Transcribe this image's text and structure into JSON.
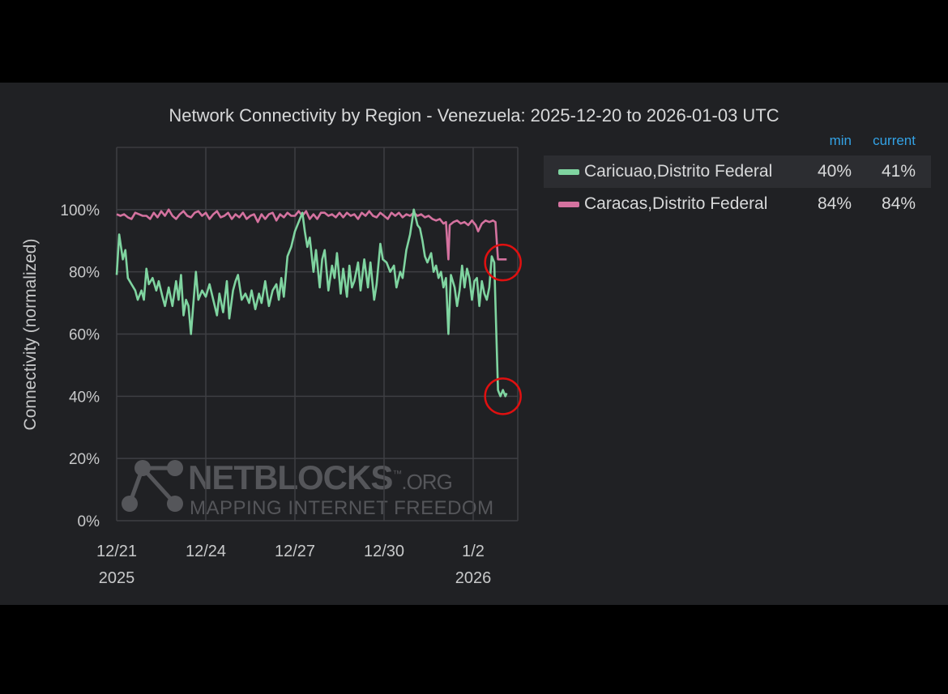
{
  "chart_data": {
    "type": "line",
    "title": "Network Connectivity by Region - Venezuela: 2025-12-20 to 2026-01-03 UTC",
    "ylabel": "Connectivity (normalized)",
    "xlabel": "",
    "ylim": [
      0,
      120
    ],
    "y_ticks": [
      "0%",
      "20%",
      "40%",
      "60%",
      "80%",
      "100%"
    ],
    "x_ticks": [
      {
        "x": "2025-12-21",
        "label": "12/21",
        "sublabel": "2025"
      },
      {
        "x": "2025-12-24",
        "label": "12/24",
        "sublabel": ""
      },
      {
        "x": "2025-12-27",
        "label": "12/27",
        "sublabel": ""
      },
      {
        "x": "2025-12-30",
        "label": "12/30",
        "sublabel": ""
      },
      {
        "x": "2026-01-02",
        "label": "1/2",
        "sublabel": "2026"
      }
    ],
    "xlim": [
      "2025-12-21T00:00",
      "2026-01-03T12:00"
    ],
    "grid": true,
    "legend_placement": "right",
    "legend_columns": [
      "min",
      "current"
    ],
    "series": [
      {
        "name": "Caricuao,Distrito Federal",
        "color": "#7fd4a0",
        "min": "40%",
        "current": "41%",
        "points": [
          [
            "2025-12-21T00:00",
            79
          ],
          [
            "2025-12-21T02:00",
            92
          ],
          [
            "2025-12-21T05:00",
            84
          ],
          [
            "2025-12-21T07:00",
            87
          ],
          [
            "2025-12-21T09:00",
            78
          ],
          [
            "2025-12-21T12:00",
            76
          ],
          [
            "2025-12-21T15:00",
            74
          ],
          [
            "2025-12-21T17:00",
            71
          ],
          [
            "2025-12-21T20:00",
            74
          ],
          [
            "2025-12-21T22:00",
            71
          ],
          [
            "2025-12-22T00:00",
            81
          ],
          [
            "2025-12-22T02:00",
            76
          ],
          [
            "2025-12-22T05:00",
            78
          ],
          [
            "2025-12-22T08:00",
            74
          ],
          [
            "2025-12-22T10:00",
            77
          ],
          [
            "2025-12-22T13:00",
            72
          ],
          [
            "2025-12-22T15:00",
            69
          ],
          [
            "2025-12-22T18:00",
            75
          ],
          [
            "2025-12-22T21:00",
            69
          ],
          [
            "2025-12-23T00:00",
            77
          ],
          [
            "2025-12-23T02:00",
            71
          ],
          [
            "2025-12-23T04:00",
            79
          ],
          [
            "2025-12-23T06:00",
            66
          ],
          [
            "2025-12-23T08:00",
            71
          ],
          [
            "2025-12-23T10:00",
            69
          ],
          [
            "2025-12-23T12:00",
            60
          ],
          [
            "2025-12-23T14:00",
            70
          ],
          [
            "2025-12-23T16:00",
            80
          ],
          [
            "2025-12-23T18:00",
            71
          ],
          [
            "2025-12-23T21:00",
            74
          ],
          [
            "2025-12-24T00:00",
            72
          ],
          [
            "2025-12-24T03:00",
            76
          ],
          [
            "2025-12-24T06:00",
            71
          ],
          [
            "2025-12-24T09:00",
            66
          ],
          [
            "2025-12-24T11:00",
            73
          ],
          [
            "2025-12-24T14:00",
            67
          ],
          [
            "2025-12-24T17:00",
            77
          ],
          [
            "2025-12-24T19:00",
            65
          ],
          [
            "2025-12-24T22:00",
            74
          ],
          [
            "2025-12-25T00:00",
            77
          ],
          [
            "2025-12-25T02:00",
            79
          ],
          [
            "2025-12-25T05:00",
            71
          ],
          [
            "2025-12-25T08:00",
            73
          ],
          [
            "2025-12-25T11:00",
            70
          ],
          [
            "2025-12-25T13:00",
            74
          ],
          [
            "2025-12-25T16:00",
            68
          ],
          [
            "2025-12-25T19:00",
            73
          ],
          [
            "2025-12-25T21:00",
            70
          ],
          [
            "2025-12-26T00:00",
            77
          ],
          [
            "2025-12-26T03:00",
            69
          ],
          [
            "2025-12-26T06:00",
            74
          ],
          [
            "2025-12-26T09:00",
            76
          ],
          [
            "2025-12-26T11:00",
            71
          ],
          [
            "2025-12-26T13:00",
            78
          ],
          [
            "2025-12-26T15:00",
            72
          ],
          [
            "2025-12-26T18:00",
            85
          ],
          [
            "2025-12-26T21:00",
            88
          ],
          [
            "2025-12-27T00:00",
            93
          ],
          [
            "2025-12-27T03:00",
            96
          ],
          [
            "2025-12-27T06:00",
            99
          ],
          [
            "2025-12-27T08:00",
            93
          ],
          [
            "2025-12-27T10:00",
            88
          ],
          [
            "2025-12-27T12:00",
            91
          ],
          [
            "2025-12-27T15:00",
            80
          ],
          [
            "2025-12-27T17:00",
            87
          ],
          [
            "2025-12-27T20:00",
            75
          ],
          [
            "2025-12-27T22:00",
            84
          ],
          [
            "2025-12-28T00:00",
            87
          ],
          [
            "2025-12-28T03:00",
            74
          ],
          [
            "2025-12-28T06:00",
            82
          ],
          [
            "2025-12-28T08:00",
            78
          ],
          [
            "2025-12-28T10:00",
            86
          ],
          [
            "2025-12-28T13:00",
            73
          ],
          [
            "2025-12-28T15:00",
            81
          ],
          [
            "2025-12-28T18:00",
            72
          ],
          [
            "2025-12-28T20:00",
            82
          ],
          [
            "2025-12-28T22:00",
            75
          ],
          [
            "2025-12-29T00:00",
            77
          ],
          [
            "2025-12-29T03:00",
            83
          ],
          [
            "2025-12-29T05:00",
            74
          ],
          [
            "2025-12-29T08:00",
            84
          ],
          [
            "2025-12-29T11:00",
            75
          ],
          [
            "2025-12-29T13:00",
            83
          ],
          [
            "2025-12-29T16:00",
            71
          ],
          [
            "2025-12-29T18:00",
            76
          ],
          [
            "2025-12-29T21:00",
            89
          ],
          [
            "2025-12-29T23:00",
            84
          ],
          [
            "2025-12-30T02:00",
            83
          ],
          [
            "2025-12-30T05:00",
            80
          ],
          [
            "2025-12-30T08:00",
            82
          ],
          [
            "2025-12-30T10:00",
            75
          ],
          [
            "2025-12-30T13:00",
            80
          ],
          [
            "2025-12-30T15:00",
            78
          ],
          [
            "2025-12-30T18:00",
            87
          ],
          [
            "2025-12-30T21:00",
            92
          ],
          [
            "2025-12-31T00:00",
            100
          ],
          [
            "2025-12-31T03:00",
            95
          ],
          [
            "2025-12-31T05:00",
            94
          ],
          [
            "2025-12-31T07:00",
            90
          ],
          [
            "2025-12-31T09:00",
            85
          ],
          [
            "2025-12-31T11:00",
            83
          ],
          [
            "2025-12-31T14:00",
            86
          ],
          [
            "2025-12-31T16:00",
            80
          ],
          [
            "2025-12-31T18:00",
            82
          ],
          [
            "2025-12-31T20:00",
            78
          ],
          [
            "2025-12-31T22:00",
            80
          ],
          [
            "2026-01-01T00:00",
            75
          ],
          [
            "2026-01-01T02:00",
            78
          ],
          [
            "2026-01-01T04:00",
            60
          ],
          [
            "2026-01-01T06:00",
            79
          ],
          [
            "2026-01-01T09:00",
            75
          ],
          [
            "2026-01-01T11:00",
            69
          ],
          [
            "2026-01-01T13:00",
            74
          ],
          [
            "2026-01-01T15:00",
            82
          ],
          [
            "2026-01-01T17:00",
            75
          ],
          [
            "2026-01-01T19:00",
            81
          ],
          [
            "2026-01-01T21:00",
            78
          ],
          [
            "2026-01-01T23:00",
            71
          ],
          [
            "2026-01-02T01:00",
            77
          ],
          [
            "2026-01-02T03:00",
            78
          ],
          [
            "2026-01-02T05:00",
            69
          ],
          [
            "2026-01-02T07:00",
            77
          ],
          [
            "2026-01-02T09:00",
            73
          ],
          [
            "2026-01-02T11:00",
            71
          ],
          [
            "2026-01-02T13:00",
            75
          ],
          [
            "2026-01-02T15:00",
            85
          ],
          [
            "2026-01-02T17:00",
            83
          ],
          [
            "2026-01-02T20:00",
            42
          ],
          [
            "2026-01-02T22:00",
            40
          ],
          [
            "2026-01-03T00:00",
            42
          ],
          [
            "2026-01-03T02:00",
            40
          ],
          [
            "2026-01-03T03:00",
            41
          ]
        ]
      },
      {
        "name": "Caracas,Distrito Federal",
        "color": "#d4729f",
        "min": "84%",
        "current": "84%",
        "points": [
          [
            "2025-12-21T00:00",
            98.5
          ],
          [
            "2025-12-21T03:00",
            98
          ],
          [
            "2025-12-21T06:00",
            98.5
          ],
          [
            "2025-12-21T09:00",
            97.5
          ],
          [
            "2025-12-21T12:00",
            97
          ],
          [
            "2025-12-21T15:00",
            99
          ],
          [
            "2025-12-21T18:00",
            98.5
          ],
          [
            "2025-12-21T21:00",
            98
          ],
          [
            "2025-12-22T00:00",
            98
          ],
          [
            "2025-12-22T03:00",
            97
          ],
          [
            "2025-12-22T06:00",
            99
          ],
          [
            "2025-12-22T09:00",
            97.5
          ],
          [
            "2025-12-22T12:00",
            99.5
          ],
          [
            "2025-12-22T15:00",
            98
          ],
          [
            "2025-12-22T18:00",
            100
          ],
          [
            "2025-12-22T21:00",
            98
          ],
          [
            "2025-12-23T00:00",
            97
          ],
          [
            "2025-12-23T03:00",
            98.5
          ],
          [
            "2025-12-23T06:00",
            99.5
          ],
          [
            "2025-12-23T09:00",
            98
          ],
          [
            "2025-12-23T12:00",
            97.5
          ],
          [
            "2025-12-23T15:00",
            99
          ],
          [
            "2025-12-23T18:00",
            99.5
          ],
          [
            "2025-12-23T21:00",
            98
          ],
          [
            "2025-12-24T00:00",
            99
          ],
          [
            "2025-12-24T03:00",
            97
          ],
          [
            "2025-12-24T06:00",
            98.5
          ],
          [
            "2025-12-24T09:00",
            99.5
          ],
          [
            "2025-12-24T12:00",
            97.5
          ],
          [
            "2025-12-24T15:00",
            98
          ],
          [
            "2025-12-24T18:00",
            99
          ],
          [
            "2025-12-24T21:00",
            97
          ],
          [
            "2025-12-25T00:00",
            98.5
          ],
          [
            "2025-12-25T03:00",
            97.5
          ],
          [
            "2025-12-25T06:00",
            99
          ],
          [
            "2025-12-25T09:00",
            97
          ],
          [
            "2025-12-25T12:00",
            98
          ],
          [
            "2025-12-25T15:00",
            98.5
          ],
          [
            "2025-12-25T18:00",
            96
          ],
          [
            "2025-12-25T21:00",
            98.5
          ],
          [
            "2025-12-26T00:00",
            97
          ],
          [
            "2025-12-26T03:00",
            98.5
          ],
          [
            "2025-12-26T06:00",
            99
          ],
          [
            "2025-12-26T09:00",
            96.5
          ],
          [
            "2025-12-26T12:00",
            98.5
          ],
          [
            "2025-12-26T15:00",
            97.5
          ],
          [
            "2025-12-26T18:00",
            99
          ],
          [
            "2025-12-26T21:00",
            98
          ],
          [
            "2025-12-27T00:00",
            98
          ],
          [
            "2025-12-27T03:00",
            99.5
          ],
          [
            "2025-12-27T06:00",
            98
          ],
          [
            "2025-12-27T09:00",
            99.5
          ],
          [
            "2025-12-27T12:00",
            97
          ],
          [
            "2025-12-27T15:00",
            98.5
          ],
          [
            "2025-12-27T18:00",
            97
          ],
          [
            "2025-12-27T21:00",
            99
          ],
          [
            "2025-12-28T00:00",
            99
          ],
          [
            "2025-12-28T03:00",
            98
          ],
          [
            "2025-12-28T06:00",
            98.5
          ],
          [
            "2025-12-28T09:00",
            97.5
          ],
          [
            "2025-12-28T12:00",
            99
          ],
          [
            "2025-12-28T15:00",
            97.5
          ],
          [
            "2025-12-28T18:00",
            99
          ],
          [
            "2025-12-28T21:00",
            98
          ],
          [
            "2025-12-29T00:00",
            98.5
          ],
          [
            "2025-12-29T03:00",
            97
          ],
          [
            "2025-12-29T06:00",
            99
          ],
          [
            "2025-12-29T09:00",
            98
          ],
          [
            "2025-12-29T12:00",
            99.5
          ],
          [
            "2025-12-29T15:00",
            98
          ],
          [
            "2025-12-29T18:00",
            97.5
          ],
          [
            "2025-12-29T21:00",
            99
          ],
          [
            "2025-12-30T00:00",
            98
          ],
          [
            "2025-12-30T03:00",
            97
          ],
          [
            "2025-12-30T06:00",
            99
          ],
          [
            "2025-12-30T09:00",
            98
          ],
          [
            "2025-12-30T12:00",
            99
          ],
          [
            "2025-12-30T15:00",
            97.5
          ],
          [
            "2025-12-30T18:00",
            98.5
          ],
          [
            "2025-12-30T21:00",
            98
          ],
          [
            "2025-12-31T00:00",
            99
          ],
          [
            "2025-12-31T03:00",
            98
          ],
          [
            "2025-12-31T06:00",
            98.5
          ],
          [
            "2025-12-31T09:00",
            97.5
          ],
          [
            "2025-12-31T12:00",
            98
          ],
          [
            "2025-12-31T15:00",
            97
          ],
          [
            "2025-12-31T18:00",
            96.5
          ],
          [
            "2025-12-31T21:00",
            97
          ],
          [
            "2026-01-01T00:00",
            95.5
          ],
          [
            "2026-01-01T02:00",
            96
          ],
          [
            "2026-01-01T04:00",
            84
          ],
          [
            "2026-01-01T05:00",
            95
          ],
          [
            "2026-01-01T08:00",
            96
          ],
          [
            "2026-01-01T11:00",
            96.5
          ],
          [
            "2026-01-01T14:00",
            95.5
          ],
          [
            "2026-01-01T17:00",
            96
          ],
          [
            "2026-01-01T20:00",
            95
          ],
          [
            "2026-01-01T23:00",
            96.5
          ],
          [
            "2026-01-02T02:00",
            95
          ],
          [
            "2026-01-02T04:00",
            93
          ],
          [
            "2026-01-02T07:00",
            95.5
          ],
          [
            "2026-01-02T10:00",
            96.5
          ],
          [
            "2026-01-02T13:00",
            96
          ],
          [
            "2026-01-02T16:00",
            96.5
          ],
          [
            "2026-01-02T18:00",
            96
          ],
          [
            "2026-01-02T20:00",
            84
          ],
          [
            "2026-01-02T23:00",
            84
          ],
          [
            "2026-01-03T02:00",
            84
          ],
          [
            "2026-01-03T03:00",
            84
          ]
        ]
      }
    ],
    "annotations": [
      {
        "type": "circle",
        "color": "#e01010",
        "x": "2026-01-03T00:00",
        "y": 83
      },
      {
        "type": "circle",
        "color": "#e01010",
        "x": "2026-01-03T00:00",
        "y": 40
      }
    ],
    "watermark": {
      "brand": "NETBLOCKS",
      "suffix": ".ORG",
      "tagline": "MAPPING INTERNET FREEDOM",
      "trademark": "™"
    }
  }
}
